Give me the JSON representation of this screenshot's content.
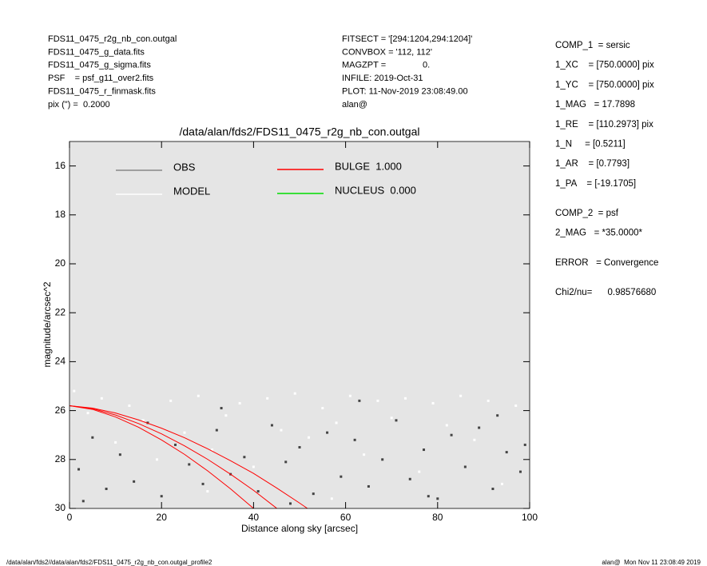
{
  "header": {
    "left": [
      "FDS11_0475_r2g_nb_con.outgal",
      "FDS11_0475_g_data.fits",
      "FDS11_0475_g_sigma.fits",
      "PSF    = psf_g11_over2.fits",
      "FDS11_0475_r_finmask.fits",
      "pix (\") =  0.2000"
    ],
    "middle": [
      "FITSECT = '[294:1204,294:1204]'",
      "CONVBOX = '112, 112'",
      "MAGZPT =               0.",
      "INFILE: 2019-Oct-31",
      "PLOT: 11-Nov-2019 23:08:49.00",
      "alan@"
    ]
  },
  "params": [
    [
      "COMP_1  = sersic",
      "1_XC    = [750.0000] pix",
      "1_YC    = [750.0000] pix",
      "1_MAG   = 17.7898",
      "1_RE    = [110.2973] pix",
      "1_N     = [0.5211]",
      "1_AR    = [0.7793]",
      "1_PA    = [-19.1705]"
    ],
    [
      "COMP_2  = psf",
      "2_MAG   = *35.0000*"
    ],
    [
      "ERROR   = Convergence"
    ],
    [
      "Chi2/nu=      0.98576680"
    ]
  ],
  "footer": {
    "left": "/data/alan/fds2//data/alan/fds2/FDS11_0475_r2g_nb_con.outgal_profile2",
    "right": "alan@  Mon Nov 11 23:08:49 2019"
  },
  "chart_data": {
    "type": "scatter",
    "title": "/data/alan/fds2/FDS11_0475_r2g_nb_con.outgal",
    "x_label": "Distance along sky [arcsec]",
    "y_label": "magnitude/arcsec^2",
    "xlim": [
      0,
      100
    ],
    "xticks": [
      0,
      20,
      40,
      60,
      80,
      100
    ],
    "ylim": [
      15,
      30
    ],
    "y_inverted": true,
    "yticks": [
      16,
      18,
      20,
      22,
      24,
      26,
      28,
      30
    ],
    "background": "#e5e5e5",
    "series": [
      {
        "name": "OBS",
        "kind": "points",
        "color": "#444444",
        "x": [
          2,
          5,
          8,
          11,
          14,
          17,
          20,
          23,
          26,
          29,
          32,
          35,
          38,
          41,
          44,
          47,
          50,
          53,
          56,
          59,
          62,
          65,
          68,
          71,
          74,
          77,
          80,
          83,
          86,
          89,
          92,
          95,
          98,
          3,
          33,
          48,
          63,
          78,
          93,
          99
        ],
        "values": [
          28.4,
          27.1,
          29.2,
          27.8,
          28.9,
          26.5,
          29.5,
          27.4,
          28.2,
          29.0,
          26.8,
          28.6,
          27.9,
          29.3,
          26.6,
          28.1,
          27.5,
          29.4,
          26.9,
          28.7,
          27.2,
          29.1,
          28.0,
          26.4,
          28.8,
          27.6,
          29.6,
          27.0,
          28.3,
          26.7,
          29.2,
          27.7,
          28.5,
          29.7,
          25.9,
          29.8,
          25.6,
          29.5,
          26.2,
          27.4
        ]
      },
      {
        "name": "MODEL",
        "kind": "points",
        "color": "#ffffff",
        "x": [
          1,
          4,
          7,
          10,
          13,
          16,
          19,
          22,
          25,
          28,
          31,
          34,
          37,
          40,
          43,
          46,
          49,
          52,
          55,
          58,
          61,
          64,
          67,
          70,
          73,
          76,
          79,
          82,
          85,
          88,
          91,
          94,
          97,
          57,
          30
        ],
        "values": [
          25.2,
          26.1,
          25.5,
          27.3,
          25.8,
          26.4,
          28.0,
          25.6,
          26.9,
          25.4,
          27.6,
          26.2,
          25.7,
          28.3,
          25.5,
          26.8,
          25.3,
          27.1,
          25.9,
          26.5,
          25.4,
          27.8,
          25.6,
          26.3,
          25.5,
          28.5,
          25.7,
          26.6,
          25.4,
          27.2,
          25.6,
          29.0,
          25.8,
          29.6,
          29.3
        ]
      },
      {
        "name": "BULGE  1.000",
        "kind": "lines",
        "color": "#ff0000",
        "lines": [
          {
            "x": [
              0,
              5,
              10,
              15,
              20,
              25,
              30,
              35,
              40,
              45,
              50,
              51.7
            ],
            "values": [
              25.8,
              25.9,
              26.1,
              26.38,
              26.72,
              27.11,
              27.56,
              28.05,
              28.57,
              29.16,
              29.78,
              30.0
            ]
          },
          {
            "x": [
              0,
              5,
              10,
              15,
              20,
              25,
              30,
              35,
              40,
              45
            ],
            "values": [
              25.8,
              25.92,
              26.18,
              26.53,
              26.95,
              27.44,
              27.99,
              28.6,
              29.26,
              29.99
            ]
          },
          {
            "x": [
              0,
              5,
              10,
              15,
              20,
              25,
              30,
              35,
              40
            ],
            "values": [
              25.8,
              25.95,
              26.26,
              26.68,
              27.2,
              27.79,
              28.46,
              29.2,
              30.0
            ]
          }
        ]
      },
      {
        "name": "NUCLEUS  0.000",
        "kind": "lines",
        "color": "#00dd00",
        "lines": []
      }
    ]
  }
}
